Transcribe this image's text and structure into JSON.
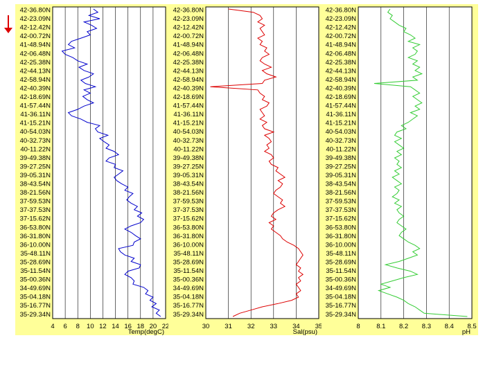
{
  "chart_data": [
    {
      "type": "line",
      "orientation": "vertical-profile",
      "xlabel": "Temp(degC)",
      "x_ticks": [
        "4",
        "6",
        "8",
        "10",
        "12",
        "14",
        "16",
        "18",
        "20",
        "22"
      ],
      "xlim": [
        4,
        22
      ],
      "y_labels": [
        "42-36.80N",
        "42-23.09N",
        "42-12.42N",
        "42-00.72N",
        "41-48.94N",
        "42-06.48N",
        "42-25.38N",
        "42-44.13N",
        "42-58.94N",
        "42-40.39N",
        "42-18.69N",
        "41-57.44N",
        "41-36.11N",
        "41-15.21N",
        "40-54.03N",
        "40-32.73N",
        "40-11.22N",
        "39-49.38N",
        "39-27.25N",
        "39-05.31N",
        "38-43.54N",
        "38-21.56N",
        "37-59.53N",
        "37-37.53N",
        "37-15.62N",
        "36-53.80N",
        "36-31.80N",
        "36-10.00N",
        "35-48.11N",
        "35-28.69N",
        "35-11.54N",
        "35-00.36N",
        "34-49.69N",
        "35-04.18N",
        "35-16.77N",
        "35-29.34N"
      ],
      "series": [
        {
          "color": "#0000cc",
          "values": [
            10.5,
            11.2,
            9.8,
            11.5,
            9.0,
            10.2,
            11.0,
            9.5,
            10.0,
            8.5,
            7.0,
            6.5,
            7.5,
            5.5,
            6.0,
            7.2,
            8.0,
            9.5,
            8.2,
            9.0,
            10.5,
            9.8,
            8.5,
            9.2,
            10.8,
            9.0,
            10.0,
            8.8,
            9.5,
            10.5,
            9.0,
            8.0,
            6.5,
            7.0,
            8.5,
            9.5,
            11.5,
            10.8,
            11.2,
            12.8,
            11.5,
            12.2,
            13.0,
            12.5,
            13.8,
            14.5,
            13.0,
            12.5,
            14.0,
            13.8,
            15.2,
            14.5,
            13.8,
            14.2,
            15.0,
            16.0,
            15.5,
            16.8,
            16.2,
            15.8,
            16.5,
            17.5,
            17.0,
            18.2,
            17.5,
            18.5,
            18.0,
            16.5,
            15.5,
            16.5,
            17.2,
            18.0,
            17.0,
            16.8,
            14.5,
            14.8,
            15.5,
            17.0,
            16.5,
            18.0,
            17.8,
            16.0,
            15.5,
            16.5,
            17.0,
            16.8,
            18.5,
            19.2,
            18.8,
            20.0,
            19.5,
            20.5,
            19.8,
            21.0,
            20.5,
            21.2
          ]
        }
      ]
    },
    {
      "type": "line",
      "orientation": "vertical-profile",
      "xlabel": "Sal(psu)",
      "x_ticks": [
        "30",
        "31",
        "32",
        "33",
        "34",
        "35"
      ],
      "xlim": [
        30,
        35
      ],
      "y_labels": [
        "42-36.80N",
        "42-23.09N",
        "42-12.42N",
        "42-00.72N",
        "41-48.94N",
        "42-06.48N",
        "42-25.38N",
        "42-44.13N",
        "42-58.94N",
        "42-40.39N",
        "42-18.69N",
        "41-57.44N",
        "41-36.11N",
        "41-15.21N",
        "40-54.03N",
        "40-32.73N",
        "40-11.22N",
        "39-49.38N",
        "39-27.25N",
        "39-05.31N",
        "38-43.54N",
        "38-21.56N",
        "37-59.53N",
        "37-37.53N",
        "37-15.62N",
        "36-53.80N",
        "36-31.80N",
        "36-10.00N",
        "35-48.11N",
        "35-28.69N",
        "35-11.54N",
        "35-00.36N",
        "34-49.69N",
        "35-04.18N",
        "35-16.77N",
        "35-29.34N"
      ],
      "series": [
        {
          "color": "#dd0000",
          "values": [
            31.0,
            32.1,
            32.4,
            32.5,
            32.3,
            32.6,
            32.4,
            32.5,
            32.6,
            32.3,
            32.5,
            32.4,
            32.7,
            32.6,
            32.8,
            32.5,
            32.4,
            32.6,
            32.9,
            32.5,
            32.7,
            33.1,
            32.6,
            32.5,
            30.2,
            32.3,
            32.4,
            32.6,
            32.5,
            32.8,
            32.7,
            32.4,
            32.5,
            32.6,
            32.4,
            32.7,
            32.5,
            32.6,
            33.0,
            32.6,
            32.8,
            32.9,
            32.7,
            32.8,
            32.6,
            32.9,
            33.0,
            32.8,
            32.9,
            33.2,
            33.1,
            33.3,
            33.5,
            33.2,
            33.4,
            33.3,
            33.1,
            33.0,
            33.2,
            33.4,
            33.3,
            33.5,
            33.2,
            33.0,
            32.9,
            33.1,
            32.8,
            33.0,
            32.9,
            33.1,
            33.3,
            33.4,
            33.6,
            33.9,
            34.1,
            34.2,
            34.3,
            34.2,
            34.1,
            34.0,
            34.2,
            34.1,
            34.3,
            34.1,
            34.2,
            34.0,
            34.1,
            34.2,
            34.0,
            34.1,
            33.8,
            33.2,
            32.5,
            32.0,
            31.5,
            31.2
          ]
        }
      ]
    },
    {
      "type": "line",
      "orientation": "vertical-profile",
      "xlabel": "pH",
      "x_ticks": [
        "8",
        "8.1",
        "8.2",
        "8.3",
        "8.4",
        "8.5"
      ],
      "xlim": [
        8.0,
        8.5
      ],
      "y_labels": [
        "42-36.80N",
        "42-23.09N",
        "42-12.42N",
        "42-00.72N",
        "41-48.94N",
        "42-06.48N",
        "42-25.38N",
        "42-44.13N",
        "42-58.94N",
        "42-40.39N",
        "42-18.69N",
        "41-57.44N",
        "41-36.11N",
        "41-15.21N",
        "40-54.03N",
        "40-32.73N",
        "40-11.22N",
        "39-49.38N",
        "39-27.25N",
        "39-05.31N",
        "38-43.54N",
        "38-21.56N",
        "37-59.53N",
        "37-37.53N",
        "37-15.62N",
        "36-53.80N",
        "36-31.80N",
        "36-10.00N",
        "35-48.11N",
        "35-28.69N",
        "35-11.54N",
        "35-00.36N",
        "34-49.69N",
        "35-04.18N",
        "35-16.77N",
        "35-29.34N"
      ],
      "series": [
        {
          "color": "#33cc33",
          "values": [
            8.14,
            8.13,
            8.15,
            8.14,
            8.16,
            8.18,
            8.21,
            8.2,
            8.23,
            8.25,
            8.22,
            8.27,
            8.24,
            8.26,
            8.25,
            8.22,
            8.26,
            8.24,
            8.27,
            8.25,
            8.28,
            8.24,
            8.26,
            8.07,
            8.23,
            8.25,
            8.27,
            8.24,
            8.26,
            8.28,
            8.25,
            8.27,
            8.23,
            8.26,
            8.24,
            8.22,
            8.19,
            8.21,
            8.17,
            8.16,
            8.19,
            8.16,
            8.18,
            8.2,
            8.17,
            8.19,
            8.16,
            8.18,
            8.17,
            8.19,
            8.16,
            8.18,
            8.15,
            8.17,
            8.19,
            8.16,
            8.18,
            8.17,
            8.15,
            8.18,
            8.16,
            8.19,
            8.17,
            8.18,
            8.2,
            8.18,
            8.17,
            8.19,
            8.21,
            8.19,
            8.18,
            8.2,
            8.22,
            8.25,
            8.27,
            8.24,
            8.26,
            8.22,
            8.18,
            8.12,
            8.17,
            8.23,
            8.26,
            8.2,
            8.15,
            8.1,
            8.14,
            8.09,
            8.13,
            8.17,
            8.2,
            8.22,
            8.25,
            8.27,
            8.29,
            8.48
          ]
        }
      ]
    }
  ],
  "indicator": {
    "color": "#dd0000"
  }
}
